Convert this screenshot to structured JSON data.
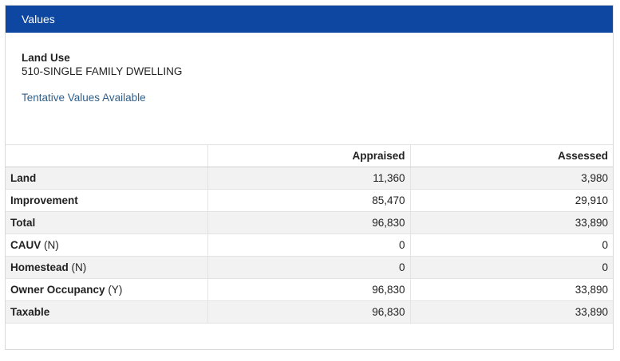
{
  "panel": {
    "title": "Values"
  },
  "land_use": {
    "label": "Land Use",
    "value": "510-SINGLE FAMILY DWELLING",
    "link": "Tentative Values Available"
  },
  "table": {
    "headers": [
      "",
      "Appraised",
      "Assessed"
    ],
    "rows": [
      {
        "label": "Land",
        "flag": "",
        "appraised": "11,360",
        "assessed": "3,980"
      },
      {
        "label": "Improvement",
        "flag": "",
        "appraised": "85,470",
        "assessed": "29,910"
      },
      {
        "label": "Total",
        "flag": "",
        "appraised": "96,830",
        "assessed": "33,890"
      },
      {
        "label": "CAUV",
        "flag": "(N)",
        "appraised": "0",
        "assessed": "0"
      },
      {
        "label": "Homestead",
        "flag": "(N)",
        "appraised": "0",
        "assessed": "0"
      },
      {
        "label": "Owner Occupancy",
        "flag": "(Y)",
        "appraised": "96,830",
        "assessed": "33,890"
      },
      {
        "label": "Taxable",
        "flag": "",
        "appraised": "96,830",
        "assessed": "33,890"
      }
    ]
  },
  "colors": {
    "header_bg": "#0d47a1",
    "link": "#2f5f8a",
    "row_alt": "#f2f2f2"
  }
}
